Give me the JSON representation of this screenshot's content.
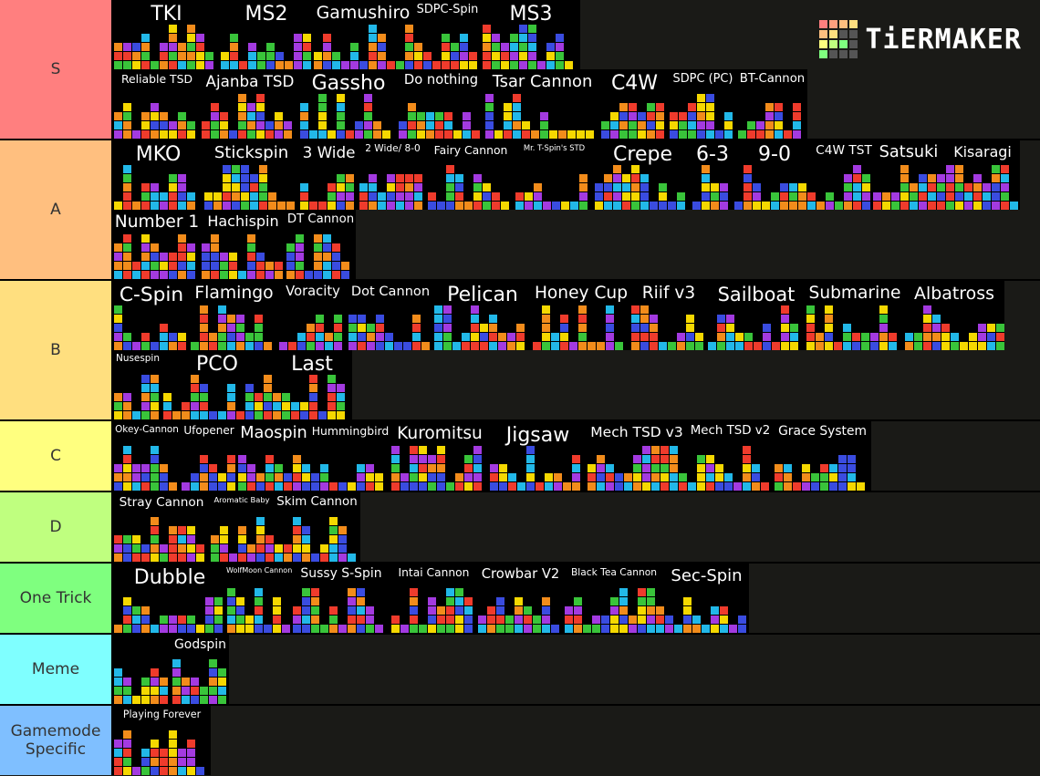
{
  "watermark": "TiERMAKER",
  "tiers": [
    {
      "label": "S",
      "color": "#ff7f7f",
      "items": [
        "TKI",
        "MS2",
        "Gamushiro",
        "SDPC-Spin",
        "MS3",
        "Reliable TSD",
        "Ajanba TSD",
        "Gassho",
        "Do nothing",
        "Tsar Cannon",
        "C4W",
        "SDPC (PC)",
        "BT-Cannon"
      ]
    },
    {
      "label": "A",
      "color": "#ffbf7f",
      "items": [
        "MKO",
        "Stickspin",
        "3 Wide",
        "2 Wide/ 8-0",
        "Fairy Cannon",
        "Mr. T-Spin's STD",
        "Crepe",
        "6-3",
        "9-0",
        "C4W TST",
        "Satsuki",
        "Kisaragi",
        "Number 1",
        "Hachispin",
        "DT Cannon"
      ]
    },
    {
      "label": "B",
      "color": "#ffdf7f",
      "items": [
        "C-Spin",
        "Flamingo",
        "Voracity",
        "Dot Cannon",
        "Pelican",
        "Honey Cup",
        "Riif v3",
        "Sailboat",
        "Submarine",
        "Albatross",
        "Nusespin",
        "PCO",
        "Last"
      ]
    },
    {
      "label": "C",
      "color": "#ffff7f",
      "items": [
        "Okey-Cannon",
        "Ufopener",
        "Maospin",
        "Hummingbird",
        "Kuromitsu",
        "Jigsaw",
        "Mech TSD v3",
        "Mech TSD v2",
        "Grace System"
      ]
    },
    {
      "label": "D",
      "color": "#bfff7f",
      "items": [
        "Stray Cannon",
        "Aromatic Baby",
        "Skim Cannon"
      ]
    },
    {
      "label": "One Trick",
      "color": "#7fff7f",
      "items": [
        "Dubble",
        "WolfMoon Cannon",
        "Sussy S-Spin",
        "Intai Cannon",
        "Crowbar V2",
        "Black Tea Cannon",
        "Sec-Spin"
      ]
    },
    {
      "label": "Meme",
      "color": "#7fffff",
      "items": [
        null,
        "Godspin"
      ]
    },
    {
      "label": "Gamemode Specific",
      "color": "#7fbfff",
      "items": [
        "Playing Forever"
      ]
    }
  ]
}
